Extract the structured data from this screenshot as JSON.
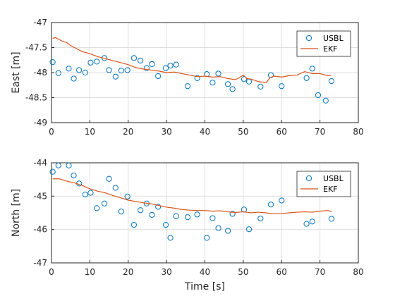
{
  "chart_data": [
    {
      "type": "scatter",
      "title": "",
      "xlabel": "",
      "ylabel": "East [m]",
      "xlim": [
        0,
        80
      ],
      "ylim": [
        -49,
        -47
      ],
      "xticks": [
        "0",
        "10",
        "20",
        "30",
        "40",
        "50",
        "60",
        "70",
        "80"
      ],
      "yticks": [
        "-49",
        "-48.5",
        "-48",
        "-47.5",
        "-47"
      ],
      "grid": true,
      "legend": "top-right",
      "series": [
        {
          "name": "USBL",
          "kind": "markers",
          "color": "#0072BD",
          "x": [
            0.3,
            1.8,
            4.5,
            5.8,
            7.2,
            8.8,
            10.2,
            11.8,
            13.8,
            15.0,
            16.7,
            18.2,
            19.8,
            21.5,
            23.2,
            24.8,
            26.2,
            27.8,
            29.8,
            31.0,
            32.5,
            35.5,
            38.0,
            40.5,
            42.0,
            43.5,
            46.0,
            47.2,
            50.2,
            51.5,
            54.5,
            57.2,
            60.0,
            66.5,
            68.0,
            69.5,
            71.5,
            73.0
          ],
          "y": [
            -47.79,
            -48.01,
            -47.92,
            -48.12,
            -47.95,
            -48.0,
            -47.8,
            -47.78,
            -47.71,
            -47.95,
            -48.08,
            -47.96,
            -47.95,
            -47.71,
            -47.76,
            -47.91,
            -47.83,
            -48.07,
            -47.91,
            -47.86,
            -47.84,
            -48.27,
            -48.11,
            -48.03,
            -48.2,
            -48.02,
            -48.23,
            -48.33,
            -48.13,
            -48.18,
            -48.28,
            -48.05,
            -48.27,
            -48.11,
            -47.92,
            -48.45,
            -48.56,
            -48.17
          ]
        },
        {
          "name": "EKF",
          "kind": "line",
          "color": "#D95319",
          "x": [
            0.3,
            1,
            2,
            3,
            4,
            5,
            6,
            8,
            10,
            12,
            15,
            18,
            20,
            22,
            24,
            26,
            28,
            30,
            32,
            34,
            36,
            38,
            40,
            42,
            44,
            46,
            48,
            49,
            50,
            51,
            52,
            54,
            56,
            57,
            58,
            60,
            62,
            64,
            66,
            68,
            70,
            72,
            73
          ],
          "y": [
            -47.32,
            -47.3,
            -47.34,
            -47.38,
            -47.4,
            -47.46,
            -47.5,
            -47.58,
            -47.62,
            -47.68,
            -47.74,
            -47.8,
            -47.84,
            -47.9,
            -47.93,
            -47.95,
            -47.97,
            -48.0,
            -47.99,
            -48.02,
            -48.05,
            -48.08,
            -48.07,
            -48.09,
            -48.08,
            -48.12,
            -48.14,
            -48.1,
            -48.05,
            -48.12,
            -48.13,
            -48.18,
            -48.2,
            -48.1,
            -48.07,
            -48.09,
            -48.06,
            -48.05,
            -47.98,
            -48.02,
            -48.02,
            -48.06,
            -48.05
          ]
        }
      ]
    },
    {
      "type": "scatter",
      "title": "",
      "xlabel": "Time [s]",
      "ylabel": "North [m]",
      "xlim": [
        0,
        80
      ],
      "ylim": [
        -47,
        -44
      ],
      "xticks": [
        "0",
        "10",
        "20",
        "30",
        "40",
        "50",
        "60",
        "70",
        "80"
      ],
      "yticks": [
        "-47",
        "-46",
        "-45",
        "-44"
      ],
      "grid": true,
      "legend": "top-right",
      "series": [
        {
          "name": "USBL",
          "kind": "markers",
          "color": "#0072BD",
          "x": [
            0.3,
            1.8,
            4.5,
            5.8,
            7.2,
            8.8,
            10.2,
            11.8,
            13.8,
            15.0,
            16.7,
            18.2,
            19.8,
            21.5,
            23.2,
            24.8,
            26.2,
            27.8,
            29.8,
            31.0,
            32.5,
            35.5,
            38.0,
            40.5,
            42.0,
            43.5,
            46.0,
            47.2,
            50.2,
            51.5,
            54.5,
            57.2,
            60.0,
            66.5,
            68.0,
            73.0
          ],
          "y": [
            -44.27,
            -44.08,
            -44.08,
            -44.38,
            -44.62,
            -44.95,
            -44.9,
            -45.36,
            -45.22,
            -44.48,
            -44.75,
            -45.46,
            -45.01,
            -45.86,
            -45.42,
            -45.22,
            -45.56,
            -45.32,
            -45.86,
            -46.25,
            -45.6,
            -45.63,
            -45.55,
            -46.25,
            -45.66,
            -45.96,
            -46.04,
            -45.53,
            -45.4,
            -45.99,
            -45.67,
            -45.25,
            -45.13,
            -45.83,
            -45.76,
            -45.68
          ]
        },
        {
          "name": "EKF",
          "kind": "line",
          "color": "#D95319",
          "x": [
            0.3,
            2,
            4,
            6,
            8,
            10,
            12,
            14,
            16,
            18,
            20,
            22,
            24,
            26,
            28,
            30,
            32,
            34,
            36,
            38,
            40,
            42,
            44,
            46,
            48,
            50,
            52,
            54,
            56,
            58,
            60,
            62,
            64,
            66,
            68,
            70,
            72,
            73
          ],
          "y": [
            -44.48,
            -44.48,
            -44.55,
            -44.6,
            -44.68,
            -44.78,
            -44.85,
            -44.9,
            -44.98,
            -45.05,
            -45.12,
            -45.16,
            -45.2,
            -45.23,
            -45.28,
            -45.33,
            -45.36,
            -45.4,
            -45.42,
            -45.43,
            -45.43,
            -45.45,
            -45.44,
            -45.47,
            -45.49,
            -45.47,
            -45.5,
            -45.48,
            -45.5,
            -45.53,
            -45.52,
            -45.5,
            -45.48,
            -45.47,
            -45.48,
            -45.45,
            -45.43,
            -45.46
          ]
        }
      ]
    }
  ]
}
